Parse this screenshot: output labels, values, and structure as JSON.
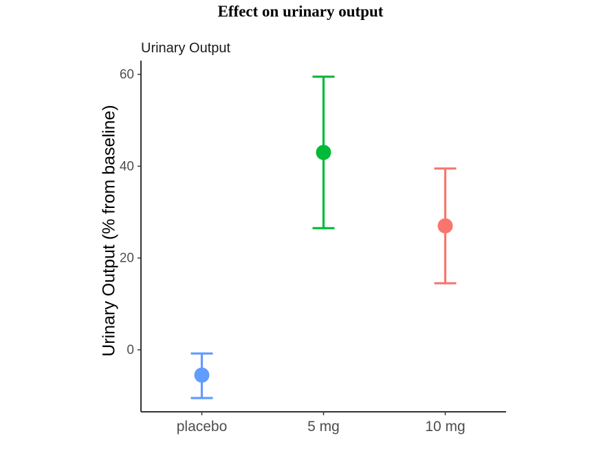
{
  "page": {
    "heading": "Effect on urinary output"
  },
  "chart_data": {
    "type": "scatter",
    "title": "Urinary Output",
    "xlabel": "",
    "ylabel": "Urinary Output (% from baseline)",
    "categories": [
      "placebo",
      "5 mg",
      "10 mg"
    ],
    "series": [
      {
        "category": "placebo",
        "mean": -5.5,
        "lower": -10.5,
        "upper": -0.8,
        "color": "#619CFF"
      },
      {
        "category": "5 mg",
        "mean": 43,
        "lower": 26.5,
        "upper": 59.5,
        "color": "#00BA38"
      },
      {
        "category": "10 mg",
        "mean": 27,
        "lower": 14.5,
        "upper": 39.5,
        "color": "#F8766D"
      }
    ],
    "yticks": [
      0,
      20,
      40,
      60
    ],
    "ylim": [
      -13.5,
      63
    ],
    "grid": false,
    "legend": "none"
  }
}
